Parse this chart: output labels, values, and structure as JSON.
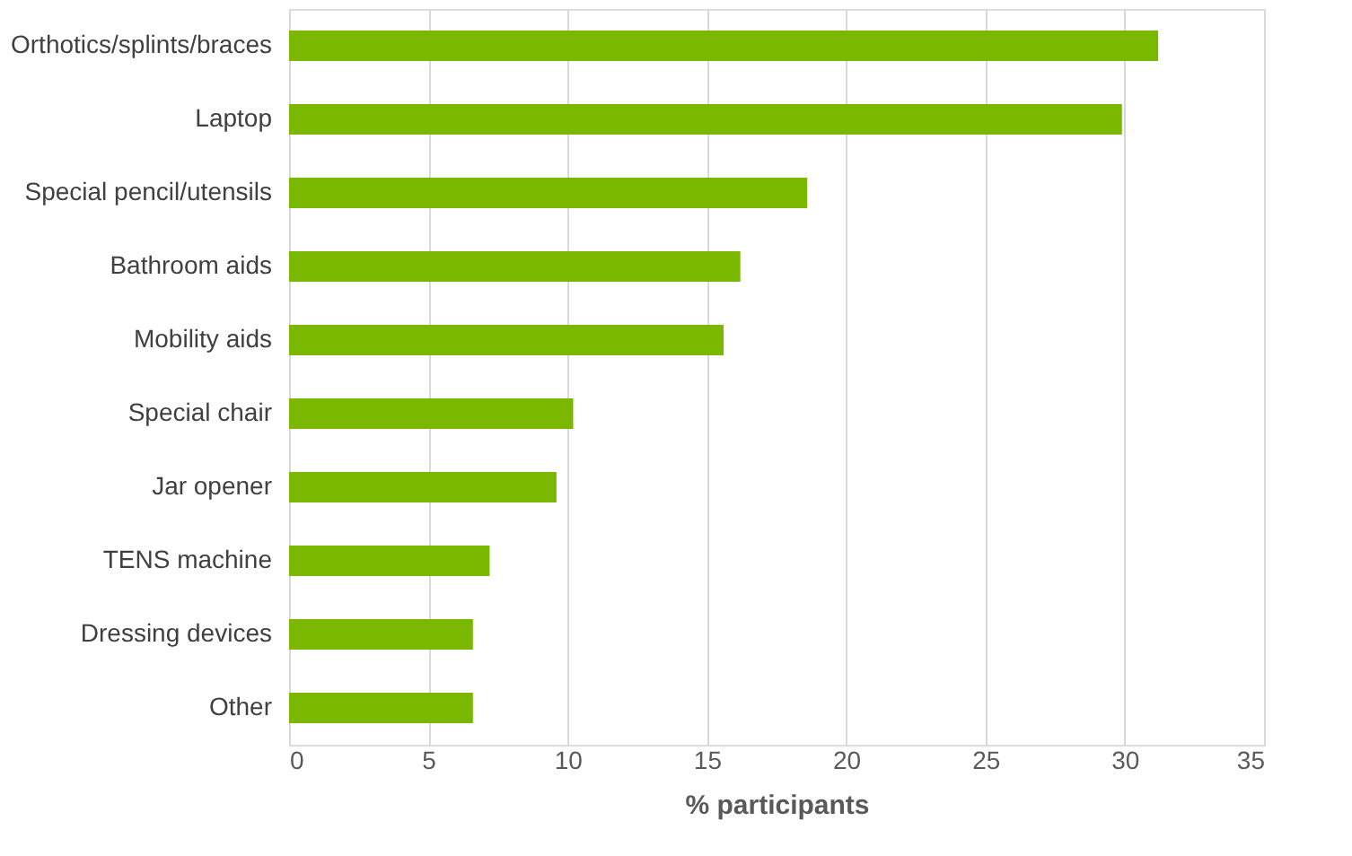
{
  "chart_data": {
    "type": "bar",
    "orientation": "horizontal",
    "xlabel": "% participants",
    "categories": [
      "Orthotics/splints/braces",
      "Laptop",
      "Special pencil/utensils",
      "Bathroom aids",
      "Mobility aids",
      "Special chair",
      "Jar opener",
      "TENS machine",
      "Dressing devices",
      "Other"
    ],
    "values": [
      31.2,
      29.9,
      18.6,
      16.2,
      15.6,
      10.2,
      9.6,
      7.2,
      6.6,
      6.6
    ],
    "color": "#7ab800",
    "xlim": [
      0,
      35
    ],
    "xticks": [
      0,
      5,
      10,
      15,
      20,
      25,
      30,
      35
    ],
    "grid": "x"
  }
}
